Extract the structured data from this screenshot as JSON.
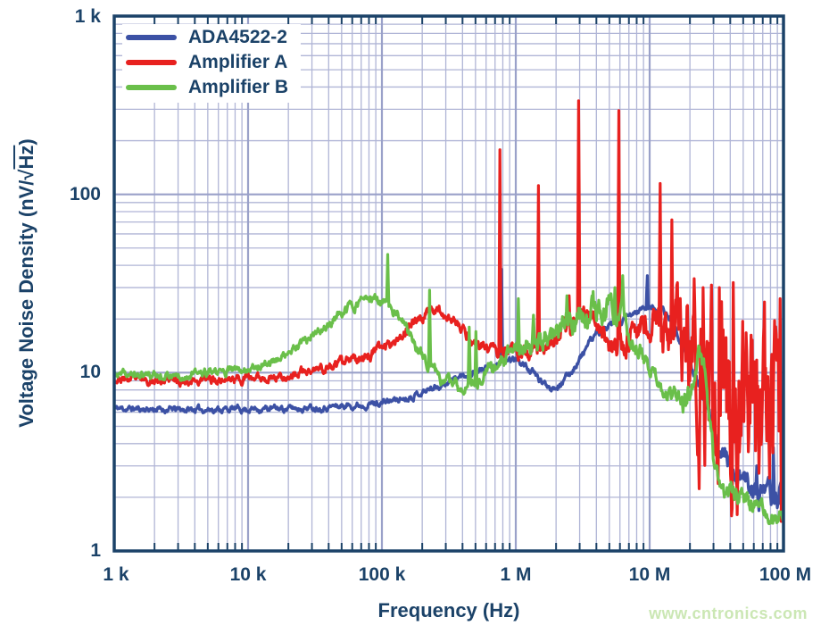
{
  "watermark": "www.cntronics.com",
  "chart_data": {
    "type": "line",
    "title": "",
    "xlabel": "Frequency (Hz)",
    "ylabel": "Voltage Noise Density (nV/√Hz)",
    "ylabel_parts": {
      "prefix": "Voltage Noise Density (nV/",
      "radical": "√",
      "radicand": "Hz",
      "suffix": ")"
    },
    "x_scale": "log",
    "y_scale": "log",
    "xlim": [
      1000,
      100000000
    ],
    "ylim": [
      1,
      1000
    ],
    "grid": true,
    "legend_position": "top-left",
    "xticks": [
      {
        "value": 1000,
        "label": "1 k"
      },
      {
        "value": 10000,
        "label": "10 k"
      },
      {
        "value": 100000,
        "label": "100 k"
      },
      {
        "value": 1000000,
        "label": "1 M"
      },
      {
        "value": 10000000,
        "label": "10 M"
      },
      {
        "value": 100000000,
        "label": "100 M"
      }
    ],
    "yticks": [
      {
        "value": 1000,
        "label": "1 k"
      },
      {
        "value": 100,
        "label": "100"
      },
      {
        "value": 10,
        "label": "10"
      },
      {
        "value": 1,
        "label": "1"
      }
    ],
    "colors": {
      "blue": "#3c51a5",
      "red": "#e8211f",
      "green": "#6abf4a",
      "frame": "#1b4268",
      "text": "#1b4268",
      "grid_minor": "#b0b5d6",
      "grid_major": "#9aa1c9",
      "watermark": "#cbe7b4"
    },
    "series": [
      {
        "name": "ADA4522-2",
        "color_key": "blue",
        "points": [
          [
            1000,
            6.3
          ],
          [
            3000,
            6.2
          ],
          [
            8000,
            6.25
          ],
          [
            20000,
            6.3
          ],
          [
            40000,
            6.45
          ],
          [
            70000,
            6.6
          ],
          [
            100000,
            6.8
          ],
          [
            150000,
            7.2
          ],
          [
            200000,
            7.8
          ],
          [
            280000,
            8.6
          ],
          [
            400000,
            9.6
          ],
          [
            550000,
            10.4
          ],
          [
            700000,
            11.0
          ],
          [
            900000,
            11.8
          ],
          [
            1050000,
            11.8
          ],
          [
            1300000,
            10.2
          ],
          [
            1600000,
            8.7
          ],
          [
            1900000,
            8.3
          ],
          [
            2300000,
            9.0
          ],
          [
            2800000,
            11.0
          ],
          [
            3400000,
            14.0
          ],
          [
            4000000,
            16.5
          ],
          [
            5000000,
            18.0
          ],
          [
            6000000,
            19.0
          ],
          [
            7000000,
            20.5
          ],
          [
            8000000,
            22.0
          ],
          [
            9500000,
            23.2
          ],
          [
            11000000,
            23.0
          ],
          [
            12500000,
            22.0
          ],
          [
            14000000,
            20.5
          ],
          [
            16000000,
            17.5
          ],
          [
            18000000,
            14.0
          ],
          [
            20000000,
            11.5
          ],
          [
            23000000,
            8.5
          ],
          [
            26000000,
            6.5
          ],
          [
            30000000,
            4.8
          ],
          [
            34000000,
            3.8
          ],
          [
            38000000,
            3.2
          ],
          [
            43000000,
            2.8
          ],
          [
            50000000,
            2.5
          ],
          [
            60000000,
            2.2
          ],
          [
            70000000,
            2.05
          ],
          [
            80000000,
            1.95
          ],
          [
            90000000,
            2.0
          ],
          [
            96000000,
            2.3
          ],
          [
            100000000,
            3.0
          ]
        ],
        "noise": [
          [
            1000,
            0.018
          ],
          [
            100000,
            0.018
          ],
          [
            1000000,
            0.02
          ],
          [
            10000000,
            0.02
          ],
          [
            20000000,
            0.03
          ],
          [
            32000000,
            0.05
          ],
          [
            45000000,
            0.07
          ],
          [
            70000000,
            0.07
          ],
          [
            100000000,
            0.06
          ]
        ],
        "spikes": [
          [
            780000,
            38
          ],
          [
            9600000,
            35
          ],
          [
            41000000,
            3.1
          ],
          [
            63000000,
            3.0
          ],
          [
            84000000,
            3.8
          ],
          [
            99000000,
            3.4
          ]
        ]
      },
      {
        "name": "Amplifier A",
        "color_key": "red",
        "points": [
          [
            1000,
            9.2
          ],
          [
            2500,
            9.0
          ],
          [
            5000,
            9.1
          ],
          [
            10000,
            9.3
          ],
          [
            20000,
            9.6
          ],
          [
            30000,
            10.2
          ],
          [
            50000,
            11.2
          ],
          [
            70000,
            12.2
          ],
          [
            100000,
            13.8
          ],
          [
            150000,
            17.0
          ],
          [
            200000,
            21.0
          ],
          [
            240000,
            23.0
          ],
          [
            280000,
            22.0
          ],
          [
            350000,
            19.0
          ],
          [
            450000,
            15.8
          ],
          [
            550000,
            14.0
          ],
          [
            700000,
            13.2
          ],
          [
            850000,
            12.8
          ],
          [
            1100000,
            12.8
          ],
          [
            1400000,
            13.5
          ],
          [
            1800000,
            14.8
          ],
          [
            2200000,
            16.0
          ],
          [
            2600000,
            18.0
          ],
          [
            3000000,
            20.0
          ],
          [
            3400000,
            21.5
          ],
          [
            3800000,
            21.0
          ],
          [
            4200000,
            19.5
          ],
          [
            4700000,
            16.5
          ],
          [
            5300000,
            14.0
          ],
          [
            5800000,
            13.0
          ],
          [
            6300000,
            14.0
          ],
          [
            7000000,
            16.5
          ],
          [
            8000000,
            18.0
          ],
          [
            9000000,
            19.0
          ],
          [
            10500000,
            18.5
          ],
          [
            11500000,
            17.5
          ],
          [
            13000000,
            15.0
          ],
          [
            14500000,
            13.5
          ],
          [
            16000000,
            12.0
          ],
          [
            18000000,
            11.0
          ],
          [
            20000000,
            10.0
          ],
          [
            25000000,
            8.5
          ],
          [
            30000000,
            7.5
          ],
          [
            40000000,
            7.0
          ],
          [
            50000000,
            6.0
          ],
          [
            60000000,
            5.5
          ],
          [
            70000000,
            5.0
          ],
          [
            80000000,
            4.5
          ],
          [
            90000000,
            4.0
          ],
          [
            100000000,
            3.4
          ]
        ],
        "noise": [
          [
            1000,
            0.022
          ],
          [
            100000,
            0.03
          ],
          [
            600000,
            0.03
          ],
          [
            1000000,
            0.035
          ],
          [
            2000000,
            0.055
          ],
          [
            5000000,
            0.07
          ],
          [
            10000000,
            0.09
          ],
          [
            14000000,
            0.15
          ],
          [
            17000000,
            0.3
          ],
          [
            22000000,
            0.45
          ],
          [
            30000000,
            0.52
          ],
          [
            50000000,
            0.55
          ],
          [
            80000000,
            0.5
          ],
          [
            100000000,
            0.45
          ]
        ],
        "spikes": [
          [
            760000,
            178
          ],
          [
            1480000,
            112
          ],
          [
            2500000,
            27
          ],
          [
            2950000,
            335
          ],
          [
            5900000,
            295
          ],
          [
            12000000,
            115
          ],
          [
            14600000,
            72
          ],
          [
            16200000,
            32
          ],
          [
            25000000,
            30
          ],
          [
            29000000,
            31
          ],
          [
            33000000,
            30
          ],
          [
            42000000,
            32
          ],
          [
            94000000,
            26
          ]
        ]
      },
      {
        "name": "Amplifier B",
        "color_key": "green",
        "points": [
          [
            1000,
            9.7
          ],
          [
            3000,
            9.7
          ],
          [
            6000,
            10.0
          ],
          [
            10000,
            10.6
          ],
          [
            15000,
            11.6
          ],
          [
            20000,
            12.8
          ],
          [
            30000,
            15.5
          ],
          [
            40000,
            18.5
          ],
          [
            50000,
            21.5
          ],
          [
            60000,
            24.0
          ],
          [
            75000,
            25.5
          ],
          [
            90000,
            25.5
          ],
          [
            105000,
            24.0
          ],
          [
            130000,
            21.0
          ],
          [
            160000,
            16.5
          ],
          [
            200000,
            12.5
          ],
          [
            250000,
            10.0
          ],
          [
            300000,
            8.8
          ],
          [
            370000,
            8.3
          ],
          [
            450000,
            8.5
          ],
          [
            550000,
            9.3
          ],
          [
            700000,
            10.8
          ],
          [
            850000,
            12.2
          ],
          [
            1000000,
            13.2
          ],
          [
            1200000,
            14.2
          ],
          [
            1500000,
            15.3
          ],
          [
            1900000,
            16.5
          ],
          [
            2300000,
            18.0
          ],
          [
            2800000,
            20.0
          ],
          [
            3300000,
            21.5
          ],
          [
            4000000,
            23.0
          ],
          [
            4600000,
            23.5
          ],
          [
            5200000,
            22.5
          ],
          [
            6000000,
            21.0
          ],
          [
            6600000,
            18.5
          ],
          [
            7500000,
            15.5
          ],
          [
            8500000,
            13.0
          ],
          [
            10000000,
            10.5
          ],
          [
            12000000,
            8.5
          ],
          [
            15000000,
            7.0
          ],
          [
            18000000,
            6.6
          ],
          [
            21000000,
            8.5
          ],
          [
            23500000,
            12.5
          ],
          [
            26000000,
            10.0
          ],
          [
            28000000,
            5.5
          ],
          [
            30000000,
            3.2
          ],
          [
            33000000,
            2.6
          ],
          [
            38000000,
            2.2
          ],
          [
            45000000,
            2.0
          ],
          [
            55000000,
            1.85
          ],
          [
            70000000,
            1.7
          ],
          [
            85000000,
            1.55
          ],
          [
            100000000,
            1.6
          ]
        ],
        "noise": [
          [
            1000,
            0.022
          ],
          [
            20000,
            0.025
          ],
          [
            100000,
            0.03
          ],
          [
            300000,
            0.035
          ],
          [
            600000,
            0.04
          ],
          [
            1000000,
            0.05
          ],
          [
            2000000,
            0.07
          ],
          [
            3000000,
            0.08
          ],
          [
            5000000,
            0.08
          ],
          [
            7000000,
            0.06
          ],
          [
            10000000,
            0.05
          ],
          [
            20000000,
            0.06
          ],
          [
            30000000,
            0.06
          ],
          [
            100000000,
            0.05
          ]
        ],
        "spikes": [
          [
            110000,
            46
          ],
          [
            228000,
            29
          ],
          [
            450000,
            18
          ],
          [
            505000,
            17
          ],
          [
            1050000,
            26
          ],
          [
            1350000,
            21
          ],
          [
            2400000,
            27
          ],
          [
            3800000,
            28.5
          ],
          [
            5500000,
            30
          ],
          [
            6300000,
            35
          ]
        ]
      }
    ]
  }
}
